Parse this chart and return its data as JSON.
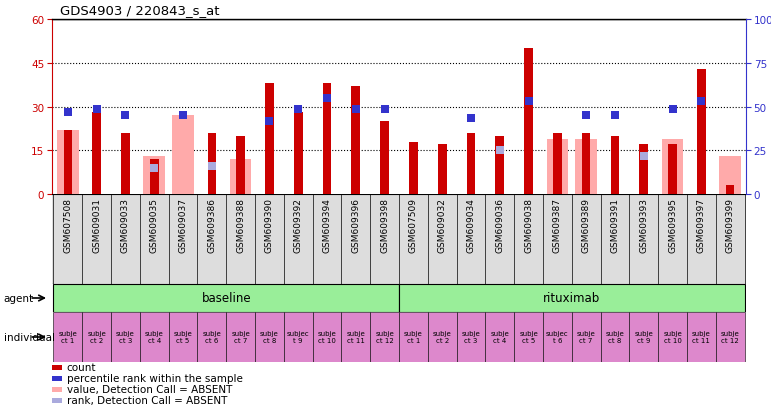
{
  "title": "GDS4903 / 220843_s_at",
  "samples": [
    "GSM607508",
    "GSM609031",
    "GSM609033",
    "GSM609035",
    "GSM609037",
    "GSM609386",
    "GSM609388",
    "GSM609390",
    "GSM609392",
    "GSM609394",
    "GSM609396",
    "GSM609398",
    "GSM607509",
    "GSM609032",
    "GSM609034",
    "GSM609036",
    "GSM609038",
    "GSM609387",
    "GSM609389",
    "GSM609391",
    "GSM609393",
    "GSM609395",
    "GSM609397",
    "GSM609399"
  ],
  "count_red": [
    22,
    28,
    21,
    12,
    0,
    21,
    20,
    38,
    28,
    38,
    37,
    25,
    18,
    17,
    21,
    20,
    50,
    21,
    21,
    20,
    17,
    17,
    43,
    3
  ],
  "percentile_blue": [
    28,
    29,
    27,
    null,
    27,
    null,
    null,
    25,
    29,
    33,
    29,
    29,
    null,
    null,
    26,
    null,
    32,
    null,
    27,
    27,
    null,
    29,
    32,
    null
  ],
  "value_absent_pink": [
    22,
    null,
    null,
    13,
    27,
    null,
    12,
    null,
    null,
    null,
    null,
    null,
    null,
    null,
    null,
    null,
    null,
    19,
    19,
    null,
    null,
    19,
    null,
    13
  ],
  "rank_absent_lightblue": [
    null,
    null,
    null,
    15,
    null,
    16,
    null,
    null,
    null,
    null,
    null,
    null,
    null,
    null,
    null,
    25,
    null,
    null,
    null,
    null,
    22,
    null,
    null,
    null
  ],
  "individual_labels": [
    "subje\nct 1",
    "subje\nct 2",
    "subje\nct 3",
    "subje\nct 4",
    "subje\nct 5",
    "subje\nct 6",
    "subje\nct 7",
    "subje\nct 8",
    "subjec\nt 9",
    "subje\nct 10",
    "subje\nct 11",
    "subje\nct 12",
    "subje\nct 1",
    "subje\nct 2",
    "subje\nct 3",
    "subje\nct 4",
    "subje\nct 5",
    "subjec\nt 6",
    "subje\nct 7",
    "subje\nct 8",
    "subje\nct 9",
    "subje\nct 10",
    "subje\nct 11",
    "subje\nct 12"
  ],
  "ylim_left": [
    0,
    60
  ],
  "ylim_right": [
    0,
    100
  ],
  "yticks_left": [
    0,
    15,
    30,
    45,
    60
  ],
  "yticks_right": [
    0,
    25,
    50,
    75,
    100
  ],
  "color_red": "#cc0000",
  "color_blue": "#3333cc",
  "color_pink": "#ffaaaa",
  "color_lightblue": "#aaaadd",
  "color_green": "#99ee99",
  "color_magenta": "#dd88cc",
  "legend_items": [
    {
      "color": "#cc0000",
      "label": "count"
    },
    {
      "color": "#3333cc",
      "label": "percentile rank within the sample"
    },
    {
      "color": "#ffaaaa",
      "label": "value, Detection Call = ABSENT"
    },
    {
      "color": "#aaaadd",
      "label": "rank, Detection Call = ABSENT"
    }
  ]
}
